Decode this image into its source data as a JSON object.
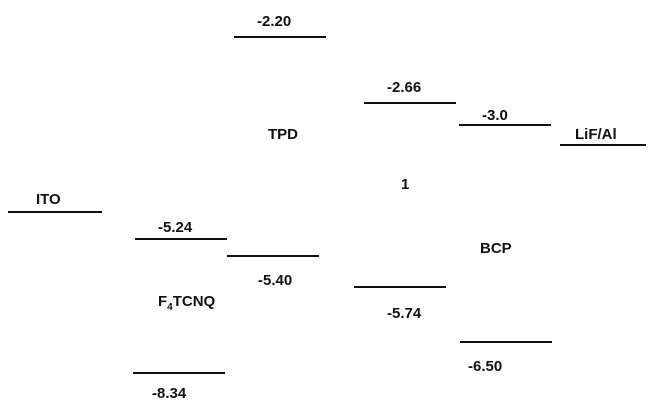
{
  "materials": {
    "ito": {
      "name": "ITO"
    },
    "f4tcnq": {
      "name_prefix": "F",
      "name_subscript": "4",
      "name_suffix": "TCNQ",
      "upper_level": "-5.24",
      "lower_level": "-8.34"
    },
    "tpd": {
      "name": "TPD",
      "upper_level": "-2.20",
      "lower_level": "-5.40"
    },
    "compound1": {
      "name": "1",
      "upper_level": "-2.66",
      "lower_level": "-5.74"
    },
    "bcp": {
      "name": "BCP",
      "upper_level": "-3.0",
      "lower_level": "-6.50"
    },
    "lif_al": {
      "name": "LiF/Al"
    }
  },
  "colors": {
    "line": "#111111",
    "text": "#111111",
    "background": "#ffffff"
  }
}
